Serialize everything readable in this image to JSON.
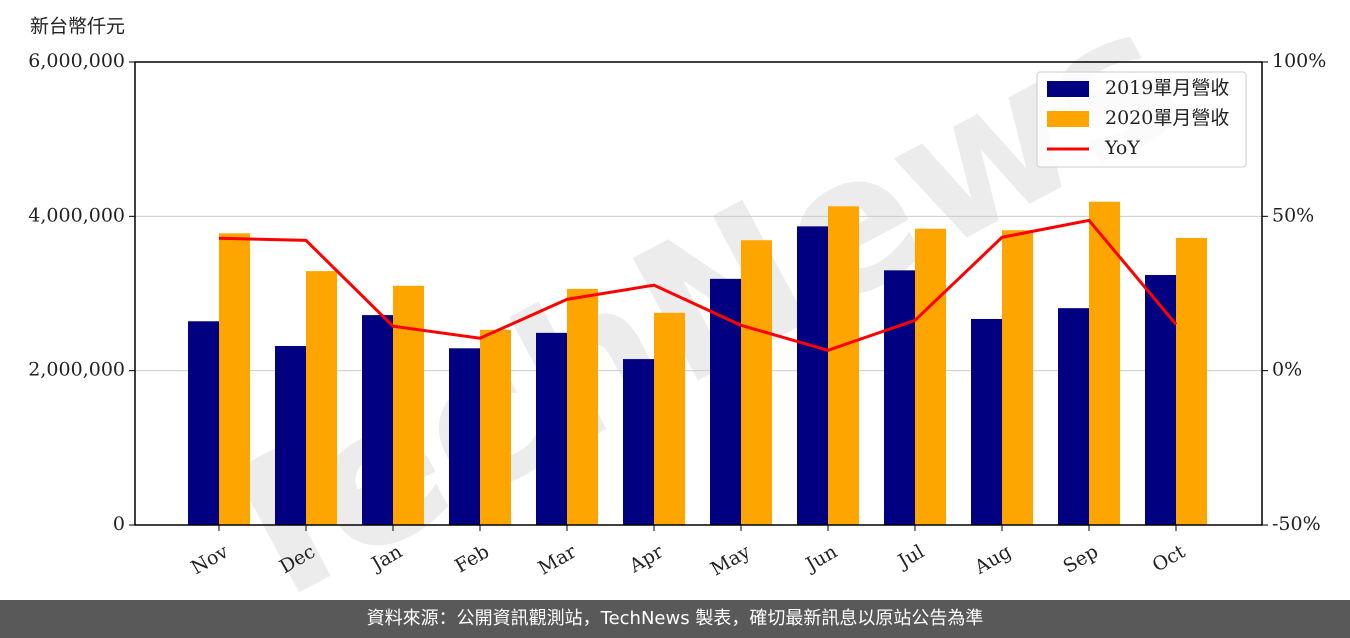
{
  "chart_data": {
    "type": "bar",
    "y_label": "新台幣仟元",
    "watermark": "TechNews",
    "categories": [
      "Nov",
      "Dec",
      "Jan",
      "Feb",
      "Mar",
      "Apr",
      "May",
      "Jun",
      "Jul",
      "Aug",
      "Sep",
      "Oct"
    ],
    "series": [
      {
        "name": "2019單月營收",
        "color": "#000080",
        "values": [
          2640000,
          2320000,
          2720000,
          2290000,
          2490000,
          2150000,
          3190000,
          3870000,
          3300000,
          2670000,
          2810000,
          3240000
        ]
      },
      {
        "name": "2020單月營收",
        "color": "#ffa500",
        "values": [
          3780000,
          3290000,
          3100000,
          2530000,
          3060000,
          2750000,
          3690000,
          4130000,
          3840000,
          3820000,
          4190000,
          3720000
        ]
      },
      {
        "name": "YoY",
        "color": "#ff0000",
        "type": "line",
        "axis": "y2",
        "values": [
          42.9,
          42.2,
          14.4,
          10.5,
          23.1,
          27.7,
          14.7,
          6.6,
          16.3,
          43.2,
          48.7,
          15.0
        ]
      }
    ],
    "ylim": [
      0,
      6000000
    ],
    "yticks": [
      {
        "value": 0,
        "label": "0"
      },
      {
        "value": 2000000,
        "label": "2,000,000"
      },
      {
        "value": 4000000,
        "label": "4,000,000"
      },
      {
        "value": 6000000,
        "label": "6,000,000"
      }
    ],
    "y2lim": [
      -50,
      100
    ],
    "y2ticks": [
      {
        "value": -50,
        "label": "-50%"
      },
      {
        "value": 0,
        "label": "0%"
      },
      {
        "value": 50,
        "label": "50%"
      },
      {
        "value": 100,
        "label": "100%"
      }
    ],
    "grid": true,
    "legend": "upper right"
  },
  "footer": "資料來源：公開資訊觀測站，TechNews 製表，確切最新訊息以原站公告為準"
}
